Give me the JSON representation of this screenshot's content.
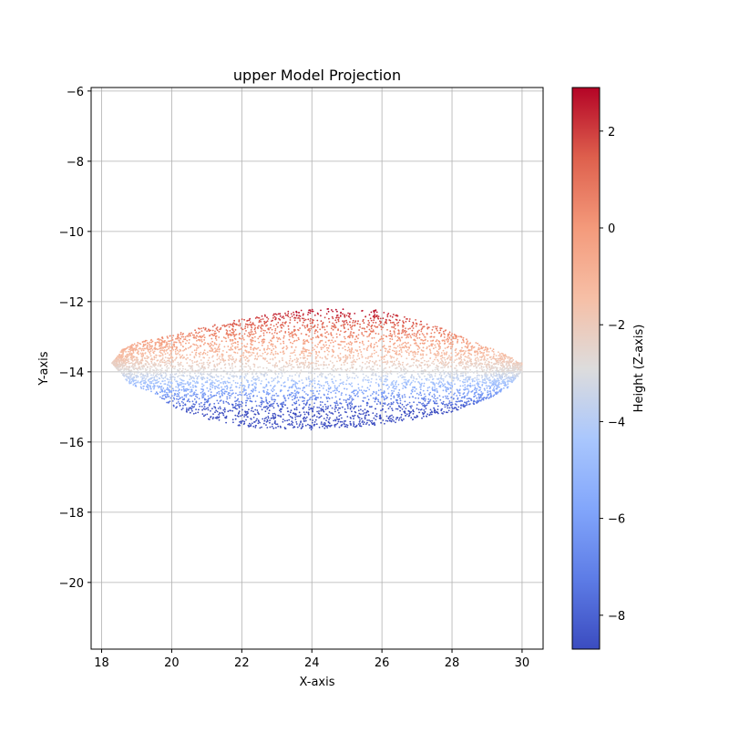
{
  "chart_data": {
    "type": "scatter",
    "title": "upper Model Projection",
    "xlabel": "X-axis",
    "ylabel": "Y-axis",
    "xlim": [
      17.7,
      30.6
    ],
    "ylim": [
      -21.9,
      -5.9
    ],
    "xticks": [
      18,
      20,
      22,
      24,
      26,
      28,
      30
    ],
    "yticks": [
      -6,
      -8,
      -10,
      -12,
      -14,
      -16,
      -18,
      -20
    ],
    "grid": true,
    "colorbar": {
      "label": "Height (Z-axis)",
      "colormap": "coolwarm",
      "range": [
        -8.7,
        2.9
      ],
      "ticks": [
        2,
        0,
        -2,
        -4,
        -6,
        -8
      ]
    },
    "point_cloud": {
      "x_range": [
        18.3,
        30.0
      ],
      "y_range": [
        -15.65,
        -12.2
      ],
      "y_center": -14.0,
      "z_range": [
        -8.7,
        2.9
      ],
      "upper_edge": [
        [
          18.3,
          -13.75
        ],
        [
          18.6,
          -13.35
        ],
        [
          19.0,
          -13.15
        ],
        [
          20.0,
          -12.95
        ],
        [
          21.0,
          -12.7
        ],
        [
          22.0,
          -12.5
        ],
        [
          23.0,
          -12.3
        ],
        [
          24.0,
          -12.2
        ],
        [
          25.0,
          -12.2
        ],
        [
          26.0,
          -12.25
        ],
        [
          27.0,
          -12.5
        ],
        [
          27.7,
          -12.75
        ],
        [
          28.5,
          -13.1
        ],
        [
          29.3,
          -13.4
        ],
        [
          30.0,
          -13.75
        ]
      ],
      "lower_edge": [
        [
          18.3,
          -13.75
        ],
        [
          18.8,
          -14.35
        ],
        [
          19.5,
          -14.6
        ],
        [
          20.0,
          -15.0
        ],
        [
          21.0,
          -15.35
        ],
        [
          22.0,
          -15.55
        ],
        [
          23.0,
          -15.65
        ],
        [
          24.0,
          -15.65
        ],
        [
          25.0,
          -15.6
        ],
        [
          26.0,
          -15.5
        ],
        [
          27.0,
          -15.35
        ],
        [
          28.0,
          -15.15
        ],
        [
          29.0,
          -14.8
        ],
        [
          29.6,
          -14.45
        ],
        [
          30.0,
          -14.0
        ]
      ]
    }
  }
}
